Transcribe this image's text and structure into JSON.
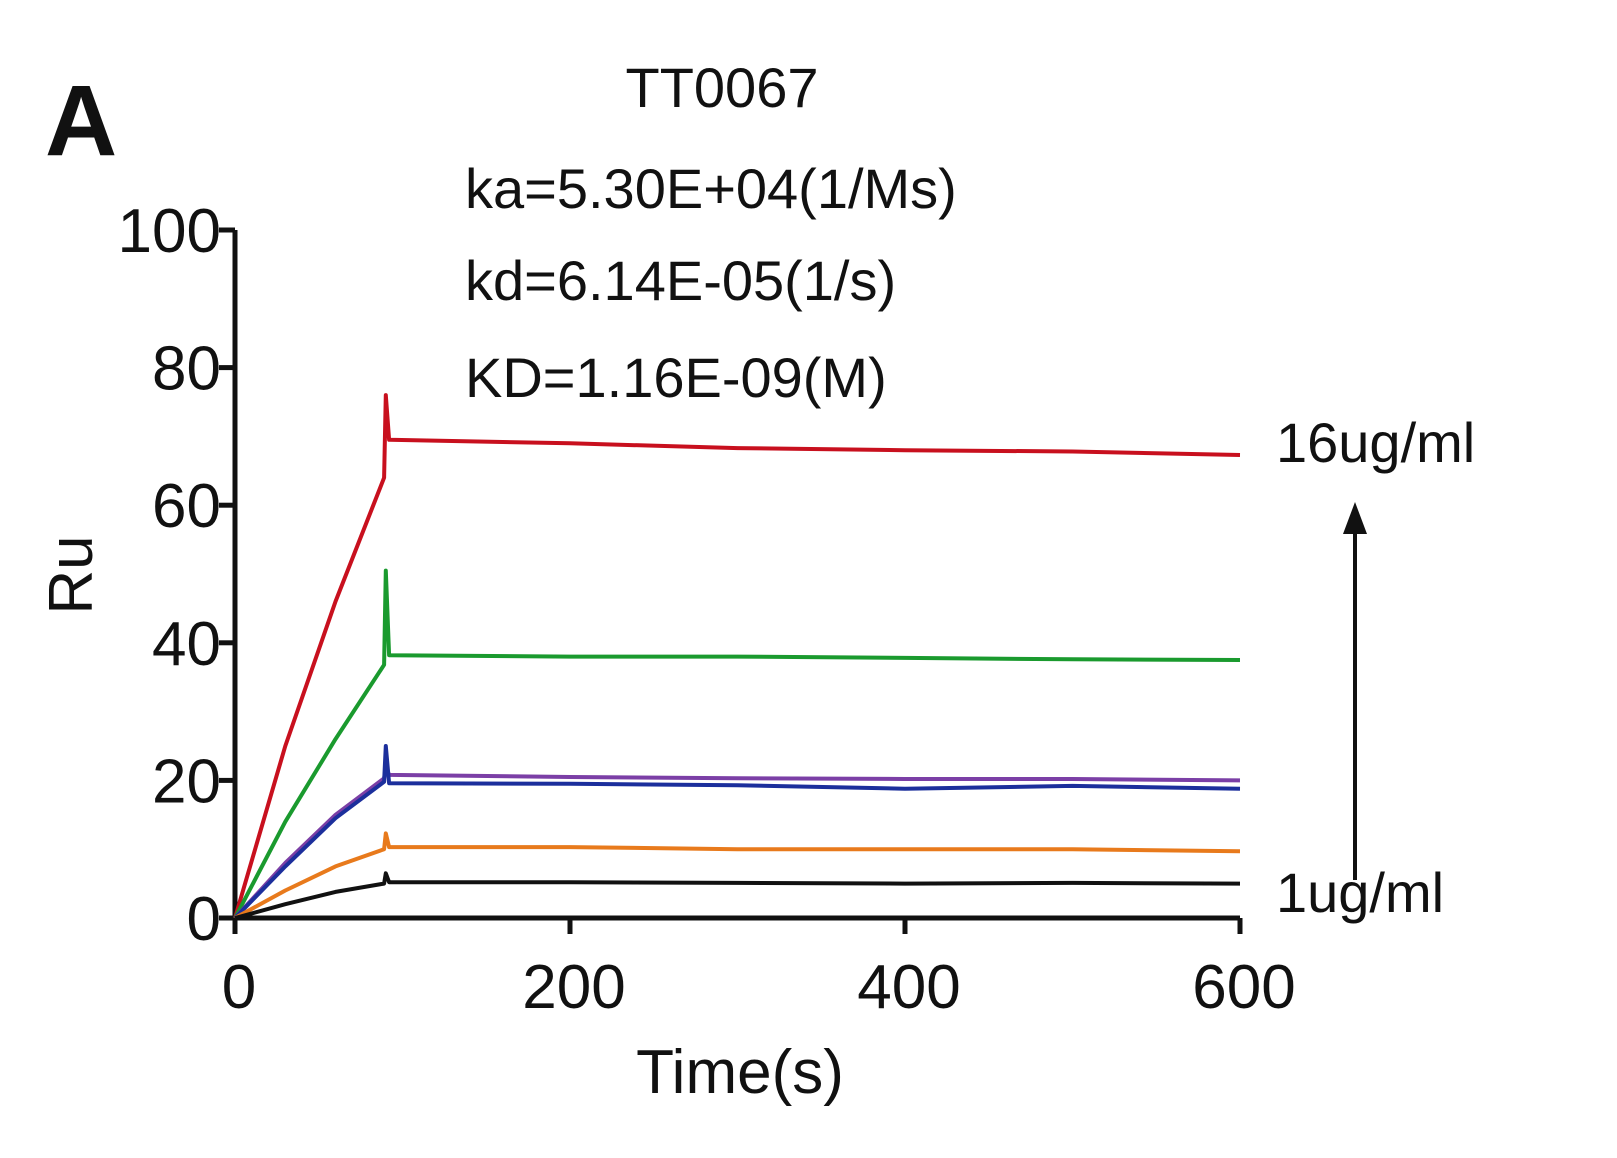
{
  "panel_label": "A",
  "chart_data": {
    "type": "line",
    "title": "TT0067",
    "annotations": {
      "ka": "ka=5.30E+04(1/Ms)",
      "kd": "kd=6.14E-05(1/s)",
      "KD": "KD=1.16E-09(M)",
      "top_label": "16ug/ml",
      "bottom_label": "1ug/ml"
    },
    "xlabel": "Time(s)",
    "ylabel": "Ru",
    "xlim": [
      0,
      600
    ],
    "ylim": [
      0,
      100
    ],
    "xticks": [
      "0",
      "200",
      "400",
      "600"
    ],
    "yticks": [
      "0",
      "20",
      "40",
      "60",
      "80",
      "100"
    ],
    "grid": false,
    "series": [
      {
        "color": "#c8101e",
        "points": [
          [
            0,
            0
          ],
          [
            30,
            25
          ],
          [
            60,
            46
          ],
          [
            89,
            64
          ],
          [
            90,
            76
          ],
          [
            92,
            69.5
          ],
          [
            200,
            69
          ],
          [
            300,
            68.3
          ],
          [
            400,
            68
          ],
          [
            500,
            67.8
          ],
          [
            600,
            67.3
          ]
        ]
      },
      {
        "color": "#1a9a2e",
        "points": [
          [
            0,
            0
          ],
          [
            30,
            14
          ],
          [
            60,
            26
          ],
          [
            89,
            36.8
          ],
          [
            90,
            50.5
          ],
          [
            92,
            38.2
          ],
          [
            200,
            38
          ],
          [
            300,
            38
          ],
          [
            400,
            37.8
          ],
          [
            500,
            37.6
          ],
          [
            600,
            37.5
          ]
        ]
      },
      {
        "color": "#7b3fa6",
        "points": [
          [
            0,
            0
          ],
          [
            30,
            8
          ],
          [
            60,
            15
          ],
          [
            89,
            20.3
          ],
          [
            90,
            22
          ],
          [
            92,
            20.8
          ],
          [
            200,
            20.5
          ],
          [
            300,
            20.3
          ],
          [
            400,
            20.2
          ],
          [
            500,
            20.2
          ],
          [
            600,
            20
          ]
        ]
      },
      {
        "color": "#1c2f9c",
        "points": [
          [
            0,
            0
          ],
          [
            30,
            7.5
          ],
          [
            60,
            14.5
          ],
          [
            89,
            19.8
          ],
          [
            90,
            25
          ],
          [
            92,
            19.6
          ],
          [
            200,
            19.5
          ],
          [
            300,
            19.3
          ],
          [
            400,
            18.8
          ],
          [
            500,
            19.2
          ],
          [
            600,
            18.8
          ]
        ]
      },
      {
        "color": "#e87a1c",
        "points": [
          [
            0,
            0
          ],
          [
            30,
            4
          ],
          [
            60,
            7.5
          ],
          [
            89,
            10
          ],
          [
            90,
            12.3
          ],
          [
            92,
            10.3
          ],
          [
            200,
            10.3
          ],
          [
            300,
            10
          ],
          [
            400,
            10
          ],
          [
            500,
            10
          ],
          [
            600,
            9.7
          ]
        ]
      },
      {
        "color": "#111111",
        "points": [
          [
            0,
            0
          ],
          [
            30,
            2
          ],
          [
            60,
            3.8
          ],
          [
            89,
            5
          ],
          [
            90,
            6.5
          ],
          [
            92,
            5.2
          ],
          [
            200,
            5.2
          ],
          [
            300,
            5.1
          ],
          [
            400,
            5
          ],
          [
            500,
            5.1
          ],
          [
            600,
            5
          ]
        ]
      }
    ]
  }
}
